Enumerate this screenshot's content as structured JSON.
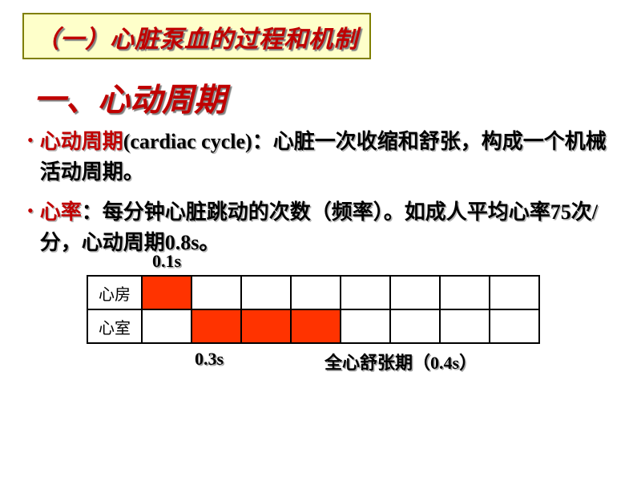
{
  "header": {
    "text": "（一）心脏泵血的过程和机制",
    "bg_color": "#feffca",
    "border_color": "#7f7f00",
    "text_color": "#c00000"
  },
  "main_title": "一、心动周期",
  "bullets": [
    {
      "term": "心动周期",
      "eng": "(cardiac cycle)",
      "rest": "：心脏一次收缩和舒张，构成一个机械活动周期。"
    },
    {
      "term": "心率",
      "eng": "",
      "rest": "：每分钟心脏跳动的次数（频率）。如成人平均心率75次/分，心动周期0.8s。"
    }
  ],
  "diagram": {
    "top_label": "0.1s",
    "row_labels": [
      "心房",
      "心室"
    ],
    "columns": 8,
    "grid_fill": [
      [
        true,
        false,
        false,
        false,
        false,
        false,
        false,
        false
      ],
      [
        false,
        true,
        true,
        true,
        false,
        false,
        false,
        false
      ]
    ],
    "fill_color": "#ff3300",
    "border_color": "#000000",
    "bottom": {
      "left_label": "0.3s",
      "right_label_prefix": "全心舒张期（",
      "right_label_value": "0.4s",
      "right_label_suffix": "）"
    }
  },
  "colors": {
    "accent": "#c00000",
    "shadow": "#808080",
    "page_bg": "#ffffff"
  }
}
